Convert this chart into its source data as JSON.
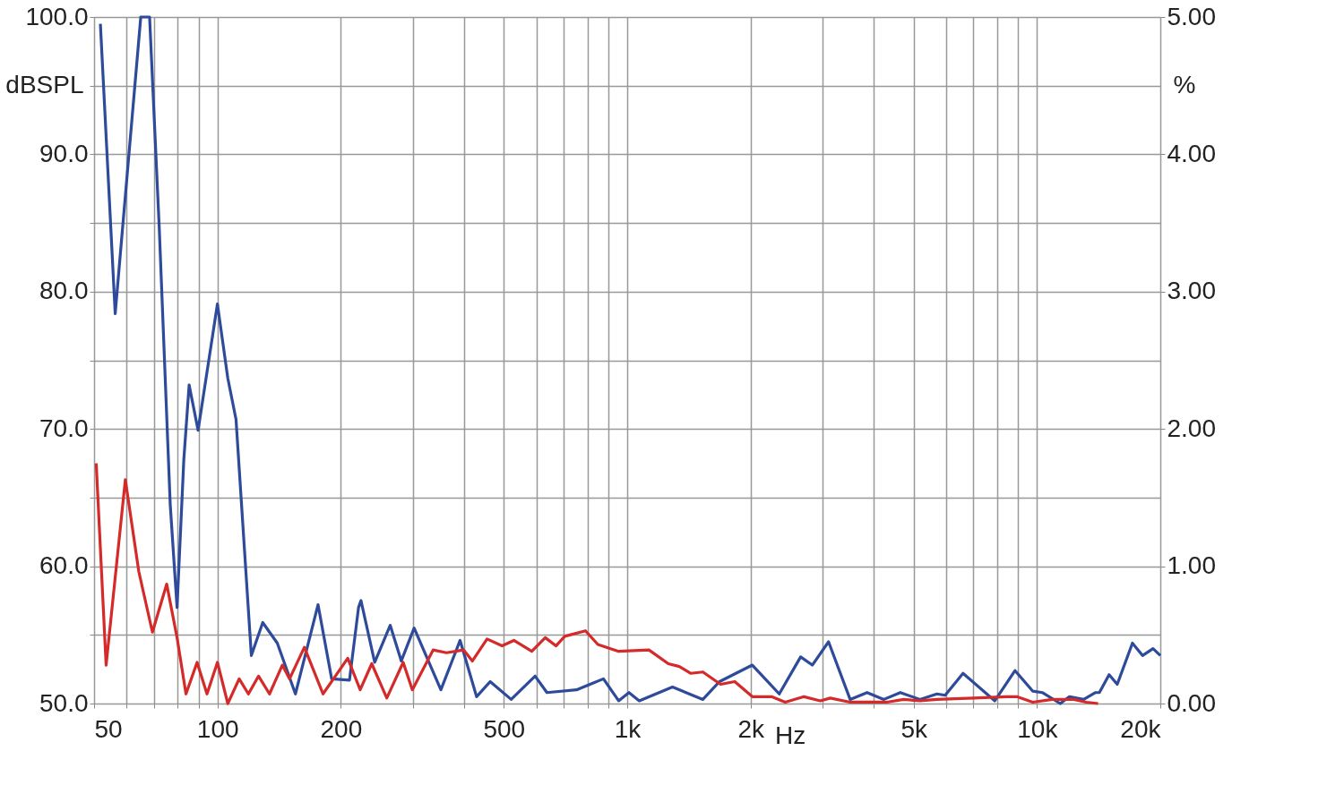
{
  "chart_data": {
    "type": "line",
    "xlabel": "Hz",
    "ylabel": "dBSPL",
    "y2label": "%",
    "log": "x",
    "grid": true,
    "legend": false,
    "marker": "none",
    "line_style": "solid",
    "xlim": [
      50,
      20000
    ],
    "xticks": [
      50,
      {
        "value": 60,
        "label": null
      },
      {
        "value": 70,
        "label": null
      },
      {
        "value": 80,
        "label": null
      },
      {
        "value": 90,
        "label": null
      },
      100,
      200,
      {
        "value": 300,
        "label": null
      },
      {
        "value": 400,
        "label": null
      },
      500,
      {
        "value": 600,
        "label": null
      },
      {
        "value": 700,
        "label": null
      },
      {
        "value": 800,
        "label": null
      },
      {
        "value": 900,
        "label": null
      },
      {
        "value": 1000,
        "label": "1k"
      },
      {
        "value": 2000,
        "label": "2k"
      },
      {
        "value": 3000,
        "label": null
      },
      {
        "value": 4000,
        "label": null
      },
      {
        "value": 5000,
        "label": "5k"
      },
      {
        "value": 6000,
        "label": null
      },
      {
        "value": 7000,
        "label": null
      },
      {
        "value": 8000,
        "label": null
      },
      {
        "value": 9000,
        "label": null
      },
      {
        "value": 10000,
        "label": "10k"
      },
      {
        "value": 20000,
        "label": "20k"
      }
    ],
    "ylim": [
      50,
      100
    ],
    "yticks": [
      {
        "value": 50,
        "label": "50.0"
      },
      {
        "value": 55,
        "label": null
      },
      {
        "value": 60,
        "label": "60.0"
      },
      {
        "value": 65,
        "label": null
      },
      {
        "value": 70,
        "label": "70.0"
      },
      {
        "value": 75,
        "label": null
      },
      {
        "value": 80,
        "label": "80.0"
      },
      {
        "value": 85,
        "label": null
      },
      {
        "value": 90,
        "label": "90.0"
      },
      {
        "value": 95,
        "label": null
      },
      {
        "value": 100,
        "label": "100.0"
      }
    ],
    "y2lim": [
      0,
      5
    ],
    "y2ticks": [
      {
        "value": 0,
        "label": "0.00"
      },
      {
        "value": 1,
        "label": "1.00"
      },
      {
        "value": 2,
        "label": "2.00"
      },
      {
        "value": 3,
        "label": "3.00"
      },
      {
        "value": 4,
        "label": "4.00"
      },
      {
        "value": 5,
        "label": "5.00"
      }
    ],
    "series": [
      {
        "color": "#2e4a9a",
        "axis": "y2",
        "x": [
          51.8,
          56.3,
          65.0,
          68.3,
          72.1,
          76.7,
          79.7,
          82.8,
          85.3,
          89.7,
          100,
          106,
          111,
          121,
          129,
          140,
          155,
          176,
          190,
          210,
          221,
          224,
          242,
          264,
          281,
          302,
          351,
          391,
          429,
          463,
          521,
          596,
          637,
          752,
          875,
          953,
          1010,
          1070,
          1290,
          1530,
          1680,
          2020,
          2350,
          2650,
          2830,
          3100,
          3500,
          3850,
          4230,
          4640,
          5180,
          5700,
          5970,
          6600,
          7890,
          8840,
          9770,
          10300,
          11400,
          12000,
          13000,
          13900,
          14200,
          15000,
          15700,
          17100,
          18100,
          19200,
          20000
        ],
        "values": [
          4.95,
          2.84,
          5.0,
          5.0,
          3.47,
          1.45,
          0.7,
          1.78,
          2.32,
          1.99,
          2.91,
          2.37,
          2.07,
          0.35,
          0.59,
          0.44,
          0.07,
          0.72,
          0.18,
          0.17,
          0.7,
          0.75,
          0.3,
          0.57,
          0.31,
          0.55,
          0.1,
          0.46,
          0.05,
          0.16,
          0.03,
          0.2,
          0.08,
          0.1,
          0.18,
          0.02,
          0.08,
          0.02,
          0.12,
          0.03,
          0.16,
          0.28,
          0.07,
          0.34,
          0.28,
          0.45,
          0.03,
          0.08,
          0.03,
          0.08,
          0.03,
          0.07,
          0.06,
          0.22,
          0.02,
          0.24,
          0.09,
          0.08,
          0.0,
          0.05,
          0.03,
          0.08,
          0.08,
          0.21,
          0.14,
          0.44,
          0.35,
          0.4,
          0.35
        ]
      },
      {
        "color": "#d42a2a",
        "axis": "y2",
        "x": [
          50.6,
          53.5,
          59.6,
          64.3,
          69.4,
          75.2,
          79.7,
          83.8,
          89.2,
          94.3,
          100,
          106,
          113,
          119,
          126,
          134,
          144,
          150,
          163,
          181,
          208,
          223,
          238,
          259,
          284,
          299,
          336,
          362,
          399,
          419,
          455,
          495,
          529,
          585,
          631,
          670,
          704,
          791,
          848,
          953,
          1130,
          1260,
          1340,
          1430,
          1530,
          1690,
          1830,
          2020,
          2250,
          2430,
          2700,
          2960,
          3130,
          3500,
          4300,
          4730,
          5180,
          5700,
          6990,
          8430,
          8930,
          9770,
          10900,
          12300,
          13200,
          14100
        ],
        "values": [
          1.75,
          0.28,
          1.63,
          0.96,
          0.52,
          0.87,
          0.48,
          0.07,
          0.3,
          0.07,
          0.3,
          0.0,
          0.18,
          0.07,
          0.2,
          0.07,
          0.28,
          0.18,
          0.41,
          0.07,
          0.33,
          0.1,
          0.29,
          0.04,
          0.3,
          0.1,
          0.39,
          0.37,
          0.39,
          0.31,
          0.47,
          0.42,
          0.46,
          0.38,
          0.48,
          0.42,
          0.49,
          0.53,
          0.43,
          0.38,
          0.39,
          0.29,
          0.27,
          0.22,
          0.23,
          0.14,
          0.16,
          0.05,
          0.05,
          0.01,
          0.05,
          0.02,
          0.04,
          0.01,
          0.01,
          0.03,
          0.02,
          0.03,
          0.04,
          0.05,
          0.05,
          0.01,
          0.03,
          0.03,
          0.01,
          0.0
        ]
      }
    ]
  }
}
